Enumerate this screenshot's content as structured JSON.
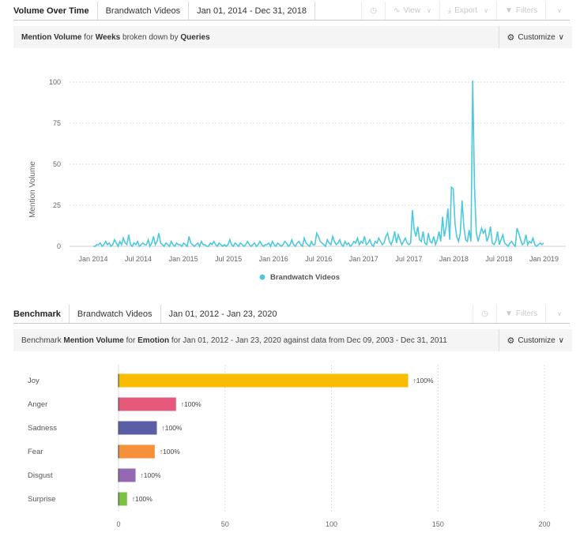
{
  "top": {
    "tabs": [
      "Volume Over Time",
      "Brandwatch Videos",
      "Jan 01, 2014 - Dec 31, 2018"
    ],
    "tools": {
      "view_label": "View",
      "export_label": "Export",
      "filters_label": "Filters"
    },
    "subtitle": {
      "metric": "Mention Volume",
      "for_word": "for",
      "period": "Weeks",
      "broken": "broken down by",
      "group": "Queries"
    },
    "customize_label": "Customize"
  },
  "bottom": {
    "tabs": [
      "Benchmark",
      "Brandwatch Videos",
      "Jan 01, 2012 - Jan 23, 2020"
    ],
    "tools": {
      "filters_label": "Filters"
    },
    "subtitle": {
      "prefix": "Benchmark",
      "metric": "Mention Volume",
      "for_word": "for",
      "dimension": "Emotion",
      "rest": "for Jan 01, 2012 - Jan 23, 2020 against data from Dec 09, 2003 - Dec 31, 2011"
    },
    "customize_label": "Customize"
  },
  "chart_data": [
    {
      "type": "line",
      "ylabel": "Mention Volume",
      "ylim": [
        0,
        100
      ],
      "yticks": [
        0,
        25,
        50,
        75,
        100
      ],
      "xticks": [
        "Jan 2014",
        "Jul 2014",
        "Jan 2015",
        "Jul 2015",
        "Jan 2016",
        "Jul 2016",
        "Jan 2017",
        "Jul 2017",
        "Jan 2018",
        "Jul 2018",
        "Jan 2019"
      ],
      "grid": true,
      "legend": "bottom-center",
      "series": [
        {
          "name": "Brandwatch Videos",
          "color": "#4dc9dd",
          "values": [
            0,
            0,
            1,
            1,
            2,
            0,
            1,
            3,
            1,
            2,
            0,
            1,
            4,
            2,
            0,
            3,
            1,
            5,
            2,
            1,
            7,
            1,
            0,
            2,
            1,
            3,
            0,
            1,
            2,
            1,
            1,
            4,
            0,
            2,
            6,
            1,
            3,
            8,
            2,
            1,
            0,
            2,
            1,
            0,
            3,
            1,
            0,
            2,
            1,
            1,
            0,
            2,
            1,
            0,
            6,
            2,
            1,
            0,
            1,
            2,
            0,
            3,
            1,
            1,
            0,
            0,
            2,
            1,
            3,
            1,
            0,
            2,
            1,
            0,
            1,
            0,
            1,
            4,
            1,
            0,
            2,
            1,
            0,
            2,
            1,
            0,
            1,
            3,
            1,
            0,
            1,
            2,
            0,
            1,
            3,
            1,
            0,
            1,
            1,
            2,
            0,
            3,
            1,
            0,
            2,
            1,
            0,
            1,
            3,
            2,
            0,
            1,
            4,
            1,
            0,
            2,
            3,
            1,
            0,
            5,
            2,
            1,
            0,
            3,
            1,
            1,
            8,
            6,
            3,
            2,
            1,
            0,
            4,
            2,
            1,
            6,
            3,
            1,
            2,
            4,
            1,
            0,
            3,
            1,
            2,
            0,
            1,
            3,
            2,
            5,
            1,
            3,
            2,
            6,
            1,
            2,
            4,
            1,
            0,
            3,
            2,
            5,
            3,
            1,
            2,
            6,
            8,
            3,
            1,
            4,
            9,
            2,
            7,
            4,
            1,
            3,
            5,
            2,
            1,
            2,
            22,
            10,
            6,
            12,
            4,
            3,
            9,
            2,
            1,
            8,
            3,
            2,
            6,
            1,
            4,
            9,
            3,
            18,
            6,
            12,
            23,
            4,
            36,
            35,
            14,
            6,
            3,
            8,
            28,
            12,
            4,
            3,
            10,
            3,
            101,
            36,
            9,
            3,
            7,
            11,
            8,
            10,
            3,
            6,
            12,
            2,
            1,
            3,
            9,
            1,
            4,
            7,
            2,
            1,
            0,
            2,
            3,
            1,
            0,
            11,
            8,
            4,
            1,
            2,
            7,
            1,
            3,
            2,
            5,
            1,
            0,
            1,
            2,
            1,
            2
          ]
        }
      ]
    },
    {
      "type": "bar",
      "orientation": "horizontal",
      "categories": [
        "Joy",
        "Anger",
        "Sadness",
        "Fear",
        "Disgust",
        "Surprise"
      ],
      "values": [
        136,
        27,
        18,
        17,
        8,
        4
      ],
      "change_labels": [
        "100%",
        "100%",
        "100%",
        "100%",
        "100%",
        "100%"
      ],
      "colors": [
        "#f8bc00",
        "#e55a7a",
        "#5b5ea6",
        "#f4913a",
        "#9568b3",
        "#7cc242"
      ],
      "xlim": [
        0,
        200
      ],
      "xticks": [
        0,
        50,
        100,
        150,
        200
      ],
      "grid": true
    }
  ]
}
